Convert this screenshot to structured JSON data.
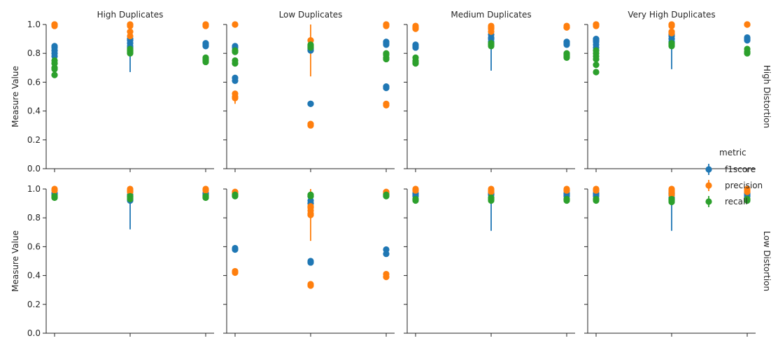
{
  "chart_data": {
    "type": "scatter",
    "ylabel": "Measure Value",
    "ylim": [
      0,
      1
    ],
    "yticks": [
      "0.0",
      "0.2",
      "0.4",
      "0.6",
      "0.8",
      "1.0"
    ],
    "x_positions": 3,
    "col_titles": [
      "High Duplicates",
      "Low Duplicates",
      "Medium Duplicates",
      "Very High Duplicates"
    ],
    "row_titles": [
      "High Distortion",
      "Low Distortion"
    ],
    "legend": {
      "title": "metric",
      "placement": "right",
      "entries": [
        {
          "name": "f1score",
          "color": "#1f77b4"
        },
        {
          "name": "precision",
          "color": "#ff7f0e"
        },
        {
          "name": "recall",
          "color": "#2ca02c"
        }
      ]
    },
    "facets": [
      {
        "row": 0,
        "col": 0,
        "groups": [
          {
            "f1score": [
              0.85,
              0.82,
              0.8,
              0.78,
              0.84
            ],
            "precision": [
              1.0,
              1.0,
              1.0,
              0.99
            ],
            "recall": [
              0.75,
              0.73,
              0.7,
              0.69,
              0.65
            ]
          },
          {
            "f1score": [
              0.9,
              0.89,
              0.87,
              0.85,
              0.84
            ],
            "precision": [
              1.0,
              1.0,
              0.99,
              0.95,
              0.92
            ],
            "recall": [
              0.83,
              0.82,
              0.81,
              0.8
            ],
            "err": {
              "series": "f1score",
              "low": 0.67,
              "high": 0.9
            }
          },
          {
            "f1score": [
              0.87,
              0.86,
              0.85
            ],
            "precision": [
              1.0,
              1.0,
              0.99
            ],
            "recall": [
              0.77,
              0.76,
              0.75,
              0.74
            ]
          }
        ]
      },
      {
        "row": 0,
        "col": 1,
        "groups": [
          {
            "f1score": [
              0.85,
              0.84,
              0.63,
              0.61
            ],
            "precision": [
              1.0,
              1.0,
              0.52,
              0.5,
              0.49
            ],
            "recall": [
              0.82,
              0.81,
              0.75,
              0.73
            ],
            "err": {
              "series": "precision",
              "low": 0.45,
              "high": 0.52
            }
          },
          {
            "f1score": [
              0.84,
              0.83,
              0.82,
              0.45,
              0.45
            ],
            "precision": [
              0.89,
              0.85,
              0.31,
              0.3
            ],
            "recall": [
              0.86,
              0.85,
              0.84
            ],
            "err": {
              "series": "precision",
              "low": 0.64,
              "high": 1.0
            }
          },
          {
            "f1score": [
              0.88,
              0.87,
              0.86,
              0.57,
              0.56
            ],
            "precision": [
              1.0,
              1.0,
              0.99,
              0.45,
              0.44
            ],
            "recall": [
              0.8,
              0.79,
              0.77,
              0.76
            ]
          }
        ]
      },
      {
        "row": 0,
        "col": 2,
        "groups": [
          {
            "f1score": [
              0.86,
              0.85,
              0.84
            ],
            "precision": [
              0.99,
              0.98,
              0.97
            ],
            "recall": [
              0.77,
              0.75,
              0.74,
              0.73
            ]
          },
          {
            "f1score": [
              0.93,
              0.91,
              0.9,
              0.88,
              0.86
            ],
            "precision": [
              0.99,
              0.98,
              0.97,
              0.95
            ],
            "recall": [
              0.87,
              0.86,
              0.85
            ],
            "err": {
              "series": "f1score",
              "low": 0.68,
              "high": 0.93
            }
          },
          {
            "f1score": [
              0.88,
              0.87,
              0.86
            ],
            "precision": [
              0.99,
              0.98,
              0.98
            ],
            "recall": [
              0.8,
              0.79,
              0.78,
              0.77
            ]
          }
        ]
      },
      {
        "row": 0,
        "col": 3,
        "groups": [
          {
            "f1score": [
              0.9,
              0.89,
              0.88,
              0.86,
              0.84
            ],
            "precision": [
              1.0,
              1.0,
              1.0,
              0.99
            ],
            "recall": [
              0.82,
              0.8,
              0.78,
              0.76,
              0.72,
              0.67
            ]
          },
          {
            "f1score": [
              0.93,
              0.92,
              0.9,
              0.88
            ],
            "precision": [
              1.0,
              1.0,
              0.99,
              0.95,
              0.94
            ],
            "recall": [
              0.87,
              0.86,
              0.85
            ],
            "err": {
              "series": "f1score",
              "low": 0.69,
              "high": 0.93
            }
          },
          {
            "f1score": [
              0.91,
              0.9,
              0.89
            ],
            "precision": [
              1.0,
              1.0,
              1.0
            ],
            "recall": [
              0.83,
              0.81,
              0.8
            ]
          }
        ]
      },
      {
        "row": 1,
        "col": 0,
        "groups": [
          {
            "f1score": [
              0.97,
              0.96
            ],
            "precision": [
              1.0,
              0.99
            ],
            "recall": [
              0.95,
              0.94,
              0.94
            ]
          },
          {
            "f1score": [
              0.96,
              0.95,
              0.93,
              0.92
            ],
            "precision": [
              1.0,
              0.99,
              0.98
            ],
            "recall": [
              0.95,
              0.94,
              0.93
            ],
            "err": {
              "series": "f1score",
              "low": 0.72,
              "high": 0.96
            }
          },
          {
            "f1score": [
              0.97,
              0.96
            ],
            "precision": [
              1.0,
              0.99
            ],
            "recall": [
              0.95,
              0.94,
              0.94
            ]
          }
        ]
      },
      {
        "row": 1,
        "col": 1,
        "groups": [
          {
            "f1score": [
              0.96,
              0.59,
              0.58
            ],
            "precision": [
              0.98,
              0.97,
              0.43,
              0.42
            ],
            "recall": [
              0.96,
              0.95
            ]
          },
          {
            "f1score": [
              0.95,
              0.92,
              0.9,
              0.5,
              0.49
            ],
            "precision": [
              0.88,
              0.87,
              0.85,
              0.83,
              0.82,
              0.34,
              0.33
            ],
            "recall": [
              0.96,
              0.95
            ],
            "err": {
              "series": "precision",
              "low": 0.64,
              "high": 1.0
            }
          },
          {
            "f1score": [
              0.96,
              0.58,
              0.55
            ],
            "precision": [
              0.98,
              0.97,
              0.41,
              0.39
            ],
            "recall": [
              0.96,
              0.95
            ]
          }
        ]
      },
      {
        "row": 1,
        "col": 2,
        "groups": [
          {
            "f1score": [
              0.97,
              0.96,
              0.95
            ],
            "precision": [
              1.0,
              0.99,
              0.99
            ],
            "recall": [
              0.93,
              0.93,
              0.92
            ]
          },
          {
            "f1score": [
              0.97,
              0.96,
              0.94,
              0.93
            ],
            "precision": [
              1.0,
              0.99,
              0.98
            ],
            "recall": [
              0.94,
              0.93,
              0.92
            ],
            "err": {
              "series": "f1score",
              "low": 0.71,
              "high": 0.97
            }
          },
          {
            "f1score": [
              0.97,
              0.96,
              0.95
            ],
            "precision": [
              1.0,
              0.99,
              0.99
            ],
            "recall": [
              0.93,
              0.93,
              0.92
            ]
          }
        ]
      },
      {
        "row": 1,
        "col": 3,
        "groups": [
          {
            "f1score": [
              0.97,
              0.96,
              0.95
            ],
            "precision": [
              1.0,
              0.99,
              0.99
            ],
            "recall": [
              0.93,
              0.93,
              0.92
            ]
          },
          {
            "f1score": [
              0.97,
              0.96,
              0.94,
              0.93
            ],
            "precision": [
              1.0,
              0.99,
              0.98,
              0.96
            ],
            "recall": [
              0.93,
              0.92,
              0.91
            ],
            "err": {
              "series": "f1score",
              "low": 0.71,
              "high": 0.97
            }
          },
          {
            "f1score": [
              0.97,
              0.96,
              0.95
            ],
            "precision": [
              1.0,
              0.99,
              0.98
            ],
            "recall": [
              0.93,
              0.93,
              0.92
            ]
          }
        ]
      }
    ]
  }
}
